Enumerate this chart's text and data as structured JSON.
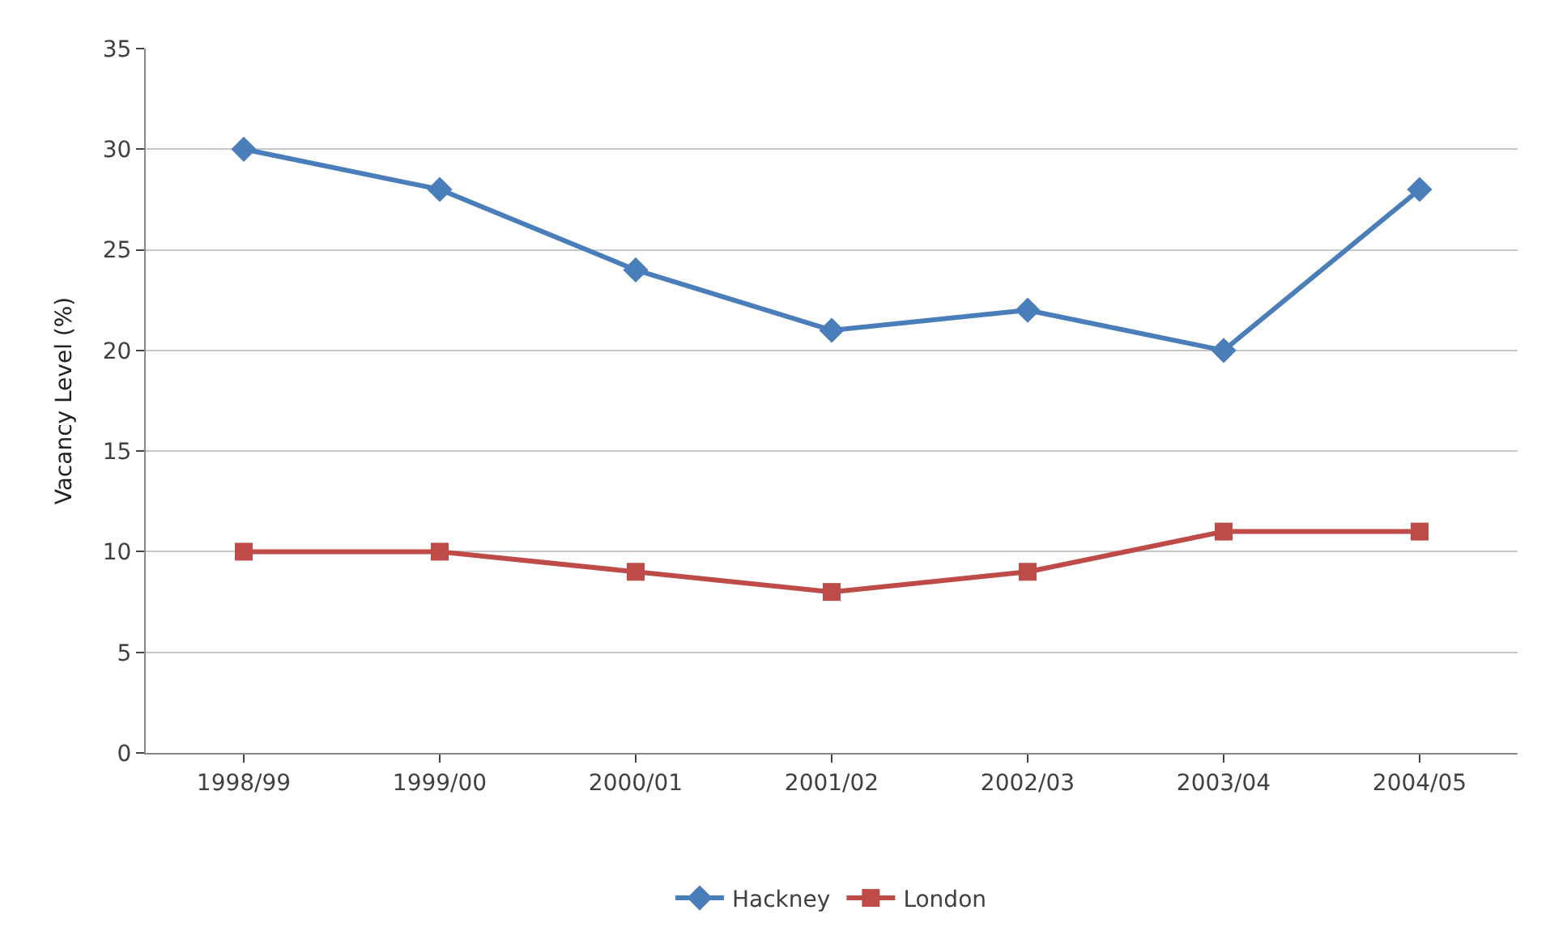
{
  "chart_data": {
    "type": "line",
    "ylabel": "Vacancy Level (%)",
    "categories": [
      "1998/99",
      "1999/00",
      "2000/01",
      "2001/02",
      "2002/03",
      "2003/04",
      "2004/05"
    ],
    "series": [
      {
        "name": "Hackney",
        "color": "#4a7ebb",
        "marker": "diamond",
        "values": [
          30,
          28,
          24,
          21,
          22,
          20,
          28
        ]
      },
      {
        "name": "London",
        "color": "#be4b48",
        "marker": "square",
        "values": [
          10,
          10,
          9,
          8,
          9,
          11,
          11
        ]
      }
    ],
    "ylim": [
      0,
      35
    ],
    "yticks": [
      0,
      5,
      10,
      15,
      20,
      25,
      30,
      35
    ],
    "grid": "y",
    "legend": "bottom",
    "line_style": "solid"
  }
}
